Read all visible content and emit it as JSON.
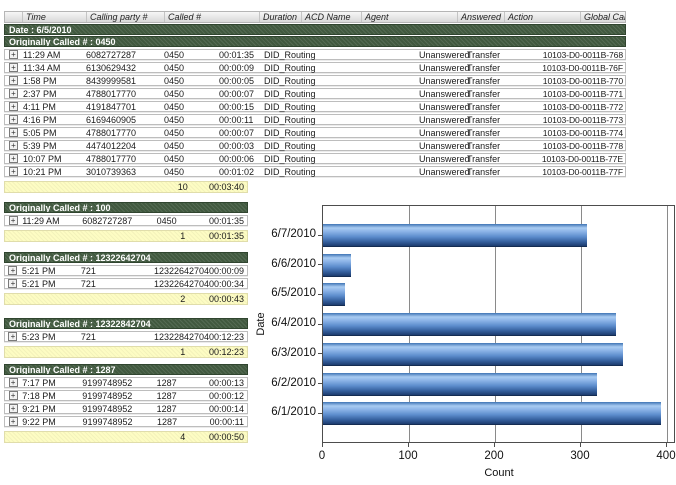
{
  "table": {
    "columns": [
      "",
      "Time",
      "Calling party #",
      "Called #",
      "Duration",
      "ACD Name",
      "Agent",
      "Answered",
      "Action",
      "Global Call Id"
    ],
    "date_header": "Date : 6/5/2010",
    "expand_glyph": "+",
    "groups": [
      {
        "header": "Originally Called # : 0450",
        "rows": [
          {
            "time": "11:29 AM",
            "calling": "6082727287",
            "called": "0450",
            "duration": "00:01:35",
            "acd": "DID_Routing",
            "agent": "",
            "answered": "Unanswered",
            "action": "Transfer",
            "gcid": "10103-D0-0011B-768"
          },
          {
            "time": "11:34 AM",
            "calling": "6130629432",
            "called": "0450",
            "duration": "00:00:09",
            "acd": "DID_Routing",
            "agent": "",
            "answered": "Unanswered",
            "action": "Transfer",
            "gcid": "10103-D0-0011B-76F"
          },
          {
            "time": "1:58 PM",
            "calling": "8439999581",
            "called": "0450",
            "duration": "00:00:05",
            "acd": "DID_Routing",
            "agent": "",
            "answered": "Unanswered",
            "action": "Transfer",
            "gcid": "10103-D0-0011B-770"
          },
          {
            "time": "2:37 PM",
            "calling": "4788017770",
            "called": "0450",
            "duration": "00:00:07",
            "acd": "DID_Routing",
            "agent": "",
            "answered": "Unanswered",
            "action": "Transfer",
            "gcid": "10103-D0-0011B-771"
          },
          {
            "time": "4:11 PM",
            "calling": "4191847701",
            "called": "0450",
            "duration": "00:00:15",
            "acd": "DID_Routing",
            "agent": "",
            "answered": "Unanswered",
            "action": "Transfer",
            "gcid": "10103-D0-0011B-772"
          },
          {
            "time": "4:16 PM",
            "calling": "6169460905",
            "called": "0450",
            "duration": "00:00:11",
            "acd": "DID_Routing",
            "agent": "",
            "answered": "Unanswered",
            "action": "Transfer",
            "gcid": "10103-D0-0011B-773"
          },
          {
            "time": "5:05 PM",
            "calling": "4788017770",
            "called": "0450",
            "duration": "00:00:07",
            "acd": "DID_Routing",
            "agent": "",
            "answered": "Unanswered",
            "action": "Transfer",
            "gcid": "10103-D0-0011B-774"
          },
          {
            "time": "5:39 PM",
            "calling": "4474012204",
            "called": "0450",
            "duration": "00:00:03",
            "acd": "DID_Routing",
            "agent": "",
            "answered": "Unanswered",
            "action": "Transfer",
            "gcid": "10103-D0-0011B-778"
          },
          {
            "time": "10:07 PM",
            "calling": "4788017770",
            "called": "0450",
            "duration": "00:00:06",
            "acd": "DID_Routing",
            "agent": "",
            "answered": "Unanswered",
            "action": "Transfer",
            "gcid": "10103-D0-0011B-77E"
          },
          {
            "time": "10:21 PM",
            "calling": "3010739363",
            "called": "0450",
            "duration": "00:01:02",
            "acd": "DID_Routing",
            "agent": "",
            "answered": "Unanswered",
            "action": "Transfer",
            "gcid": "10103-D0-0011B-77F"
          }
        ],
        "summary": {
          "count": "10",
          "total": "00:03:40"
        }
      },
      {
        "header": "Originally Called # : 100",
        "rows": [
          {
            "time": "11:29 AM",
            "calling": "6082727287",
            "called": "0450",
            "duration": "00:01:35"
          }
        ],
        "summary": {
          "count": "1",
          "total": "00:01:35"
        }
      },
      {
        "header": "Originally Called # : 12322642704",
        "rows": [
          {
            "time": "5:21 PM",
            "calling": "721",
            "called": "12322642704",
            "duration": "00:00:09"
          },
          {
            "time": "5:21 PM",
            "calling": "721",
            "called": "12322642704",
            "duration": "00:00:34"
          }
        ],
        "summary": {
          "count": "2",
          "total": "00:00:43"
        }
      },
      {
        "header": "Originally Called # : 12322842704",
        "rows": [
          {
            "time": "5:23 PM",
            "calling": "721",
            "called": "12322842704",
            "duration": "00:12:23"
          }
        ],
        "summary": {
          "count": "1",
          "total": "00:12:23"
        }
      },
      {
        "header": "Originally Called # : 1287",
        "rows": [
          {
            "time": "7:17 PM",
            "calling": "9199748952",
            "called": "1287",
            "duration": "00:00:13"
          },
          {
            "time": "7:18 PM",
            "calling": "9199748952",
            "called": "1287",
            "duration": "00:00:12"
          },
          {
            "time": "9:21 PM",
            "calling": "9199748952",
            "called": "1287",
            "duration": "00:00:14"
          },
          {
            "time": "9:22 PM",
            "calling": "9199748952",
            "called": "1287",
            "duration": "00:00:11"
          }
        ],
        "summary": {
          "count": "4",
          "total": "00:00:50"
        }
      }
    ]
  },
  "chart_data": {
    "type": "bar",
    "orientation": "horizontal",
    "categories": [
      "6/7/2010",
      "6/6/2010",
      "6/5/2010",
      "6/4/2010",
      "6/3/2010",
      "6/2/2010",
      "6/1/2010"
    ],
    "values": [
      307,
      32,
      26,
      340,
      348,
      318,
      392
    ],
    "title": "",
    "xlabel": "Count",
    "ylabel": "Date",
    "xlim": [
      0,
      410
    ],
    "xticks": [
      0,
      100,
      200,
      300,
      400
    ],
    "grid": true,
    "legend": false
  },
  "colors": {
    "group_header_bg": "#41593F",
    "summary_bg": "#FDFCC3",
    "bar_fill": "#5D8DCD",
    "gridline": "#8A8A8A"
  }
}
